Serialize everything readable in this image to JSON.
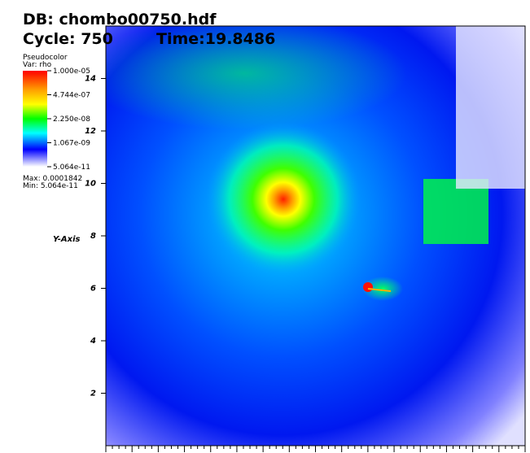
{
  "header": {
    "database": "DB: chombo00750.hdf",
    "cycle": "Cycle: 750",
    "time": "Time:19.8486"
  },
  "legend": {
    "plot": "Pseudocolor",
    "variable": "Var: rho",
    "labels": [
      "1.000e-05",
      "4.744e-07",
      "2.250e-08",
      "1.067e-09",
      "5.064e-11"
    ],
    "max": "Max: 0.0001842",
    "min": "Min: 5.064e-11"
  },
  "plot": {
    "y_axis": {
      "label": "Y-Axis",
      "ylim": [
        0,
        16
      ],
      "yticks": [
        2,
        4,
        6,
        8,
        10,
        12,
        14
      ]
    }
  }
}
